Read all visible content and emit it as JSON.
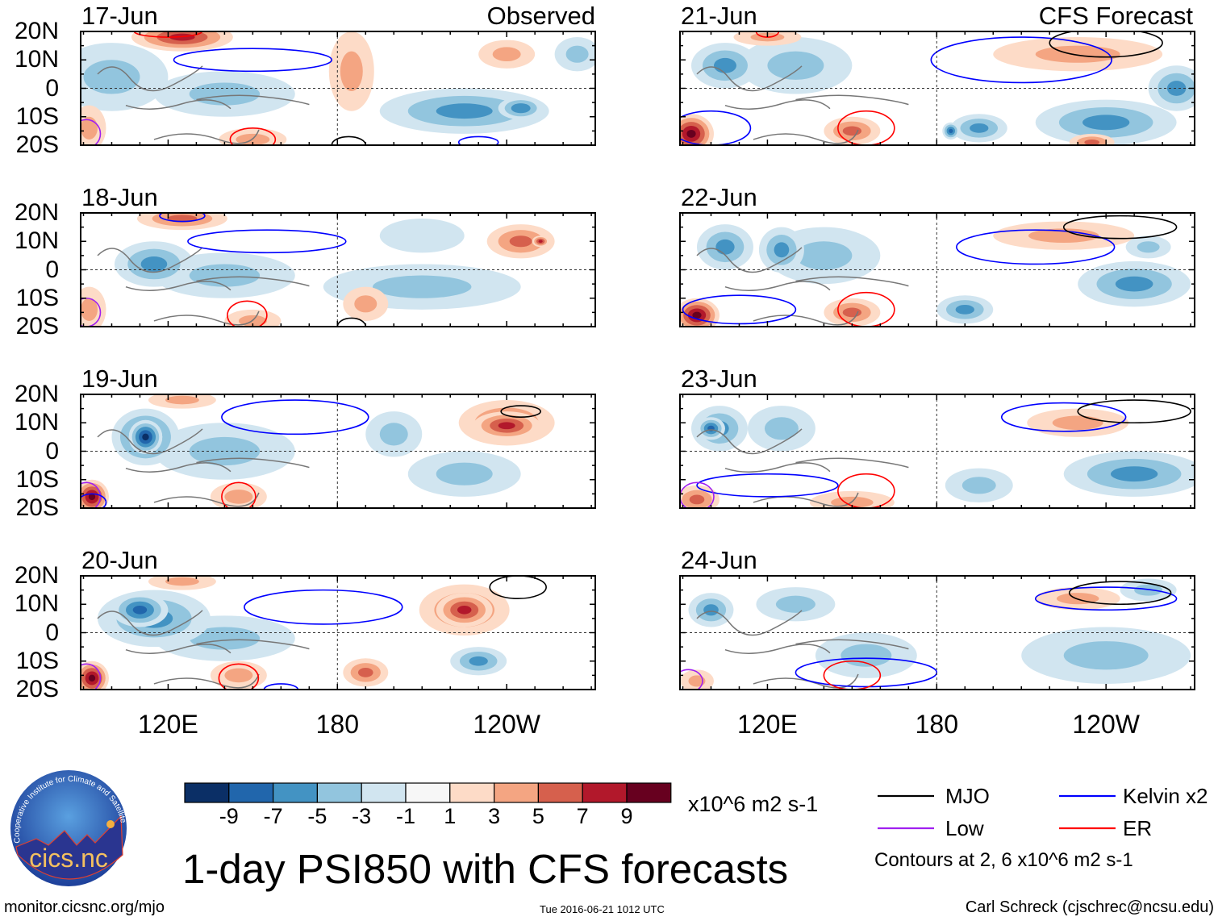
{
  "header": {
    "left_label": "Observed",
    "right_label": "CFS Forecast"
  },
  "lat_labels": [
    "20N",
    "10N",
    "0",
    "10S",
    "20S"
  ],
  "lon_labels": [
    "120E",
    "180",
    "120W"
  ],
  "colorbar": {
    "colors": [
      "#0b2f66",
      "#2166ac",
      "#4393c3",
      "#92c5de",
      "#d1e5f0",
      "#f7f7f7",
      "#fddbc7",
      "#f4a582",
      "#d6604d",
      "#b2182b",
      "#67001f"
    ],
    "labels": [
      "-9",
      "-7",
      "-5",
      "-3",
      "-1",
      "1",
      "3",
      "5",
      "7",
      "9"
    ],
    "units": "x10^6 m2 s-1"
  },
  "legend": {
    "items": [
      {
        "label": "MJO",
        "color": "#000000"
      },
      {
        "label": "Kelvin x2",
        "color": "#0000ff"
      },
      {
        "label": "Low",
        "color": "#a020f0"
      },
      {
        "label": "ER",
        "color": "#ff0000"
      }
    ],
    "note": "Contours at 2, 6 x10^6 m2 s-1"
  },
  "title": "1-day PSI850 with CFS forecasts",
  "timestamp": "Tue 2016-06-21 1012 UTC",
  "url": "monitor.cicsnc.org/mjo",
  "credit": "Carl Schreck (cjschrec@ncsu.edu)",
  "logo": {
    "text": "cics.nc",
    "ring_text": "Cooperative Institute for Climate and Satellites"
  },
  "map": {
    "lon_range": [
      89,
      271.4
    ],
    "lat_range": [
      -20,
      20
    ]
  },
  "panels": [
    {
      "date": "17-Jun",
      "anomalies": [
        [
          125,
          18,
          7,
          18,
          5
        ],
        [
          100,
          4,
          -3,
          20,
          12
        ],
        [
          140,
          -2,
          -3,
          25,
          8
        ],
        [
          225,
          -8,
          -5,
          30,
          8
        ],
        [
          245,
          -7,
          -6,
          8,
          4
        ],
        [
          185,
          6,
          3,
          8,
          14
        ],
        [
          240,
          12,
          3,
          10,
          5
        ],
        [
          92,
          -14,
          3,
          6,
          8
        ],
        [
          150,
          -18,
          3,
          12,
          4
        ],
        [
          265,
          12,
          -3,
          8,
          6
        ]
      ],
      "contours": [
        [
          "kelvin",
          150,
          10,
          28,
          4
        ],
        [
          "er",
          150,
          -18,
          8,
          4
        ],
        [
          "mjo",
          184,
          -20,
          6,
          3
        ],
        [
          "low",
          91,
          -16,
          5,
          5
        ],
        [
          "kelvin",
          230,
          -19,
          7,
          2
        ],
        [
          "er",
          120,
          20,
          12,
          2
        ]
      ]
    },
    {
      "date": "18-Jun",
      "anomalies": [
        [
          125,
          18,
          5,
          16,
          4
        ],
        [
          115,
          2,
          -5,
          14,
          8
        ],
        [
          140,
          -2,
          -3,
          25,
          8
        ],
        [
          210,
          -6,
          -3,
          35,
          8
        ],
        [
          245,
          10,
          5,
          12,
          6
        ],
        [
          252,
          10,
          7,
          3,
          2
        ],
        [
          190,
          -12,
          3,
          8,
          6
        ],
        [
          92,
          -14,
          3,
          6,
          8
        ],
        [
          150,
          -18,
          3,
          10,
          4
        ],
        [
          210,
          12,
          -1,
          15,
          6
        ]
      ],
      "contours": [
        [
          "kelvin",
          155,
          10,
          28,
          4
        ],
        [
          "er",
          148,
          -16,
          7,
          5
        ],
        [
          "mjo",
          185,
          -20,
          5,
          3
        ],
        [
          "low",
          91,
          -15,
          5,
          5
        ],
        [
          "kelvin",
          125,
          19,
          8,
          2
        ]
      ]
    },
    {
      "date": "19-Jun",
      "anomalies": [
        [
          112,
          5,
          -9,
          6,
          6
        ],
        [
          112,
          5,
          -7,
          12,
          10
        ],
        [
          140,
          0,
          -3,
          25,
          10
        ],
        [
          225,
          -8,
          -3,
          20,
          8
        ],
        [
          240,
          9,
          7,
          12,
          5
        ],
        [
          240,
          10,
          5,
          17,
          8
        ],
        [
          93,
          -16,
          9,
          6,
          6
        ],
        [
          145,
          -16,
          3,
          10,
          5
        ],
        [
          200,
          6,
          -3,
          10,
          8
        ],
        [
          125,
          18,
          3,
          12,
          3
        ]
      ],
      "contours": [
        [
          "kelvin",
          165,
          12,
          26,
          6
        ],
        [
          "mjo",
          245,
          14,
          7,
          2
        ],
        [
          "er",
          145,
          -16,
          6,
          5
        ],
        [
          "low",
          91,
          -16,
          5,
          5
        ],
        [
          "kelvin",
          93,
          -18,
          5,
          3
        ]
      ]
    },
    {
      "date": "20-Jun",
      "anomalies": [
        [
          110,
          8,
          -7,
          10,
          6
        ],
        [
          115,
          5,
          -5,
          20,
          10
        ],
        [
          140,
          -2,
          -3,
          25,
          8
        ],
        [
          230,
          -10,
          -5,
          10,
          5
        ],
        [
          225,
          8,
          7,
          10,
          6
        ],
        [
          225,
          8,
          5,
          16,
          9
        ],
        [
          190,
          -14,
          5,
          8,
          5
        ],
        [
          93,
          -16,
          9,
          6,
          6
        ],
        [
          145,
          -15,
          3,
          10,
          5
        ],
        [
          125,
          18,
          3,
          12,
          3
        ]
      ],
      "contours": [
        [
          "kelvin",
          175,
          9,
          28,
          6
        ],
        [
          "mjo",
          244,
          16,
          10,
          4
        ],
        [
          "er",
          145,
          -16,
          7,
          5
        ],
        [
          "low",
          91,
          -16,
          5,
          5
        ],
        [
          "kelvin",
          160,
          -20,
          6,
          2
        ]
      ]
    },
    {
      "date": "21-Jun",
      "anomalies": [
        [
          105,
          8,
          -5,
          12,
          8
        ],
        [
          130,
          8,
          -3,
          20,
          10
        ],
        [
          240,
          -12,
          -5,
          25,
          8
        ],
        [
          265,
          0,
          -5,
          10,
          8
        ],
        [
          195,
          -14,
          -5,
          10,
          5
        ],
        [
          185,
          -15,
          -7,
          3,
          3
        ],
        [
          93,
          -16,
          9,
          8,
          7
        ],
        [
          150,
          -15,
          5,
          10,
          5
        ],
        [
          230,
          12,
          3,
          30,
          6
        ],
        [
          235,
          -19,
          5,
          8,
          3
        ],
        [
          120,
          18,
          3,
          12,
          3
        ]
      ],
      "contours": [
        [
          "kelvin",
          210,
          10,
          32,
          8
        ],
        [
          "mjo",
          240,
          16,
          20,
          5
        ],
        [
          "er",
          155,
          -14,
          10,
          6
        ],
        [
          "kelvin",
          100,
          -14,
          14,
          6
        ],
        [
          "er",
          120,
          20,
          4,
          2
        ]
      ]
    },
    {
      "date": "22-Jun",
      "anomalies": [
        [
          105,
          8,
          -5,
          10,
          8
        ],
        [
          125,
          7,
          -5,
          8,
          8
        ],
        [
          140,
          5,
          -3,
          20,
          10
        ],
        [
          250,
          -5,
          -5,
          20,
          8
        ],
        [
          190,
          -14,
          -5,
          10,
          5
        ],
        [
          95,
          -16,
          9,
          8,
          6
        ],
        [
          150,
          -15,
          5,
          10,
          5
        ],
        [
          225,
          12,
          3,
          25,
          5
        ],
        [
          255,
          8,
          -3,
          8,
          4
        ]
      ],
      "contours": [
        [
          "kelvin",
          215,
          8,
          28,
          6
        ],
        [
          "mjo",
          245,
          15,
          20,
          4
        ],
        [
          "er",
          155,
          -14,
          10,
          6
        ],
        [
          "kelvin",
          110,
          -14,
          20,
          5
        ]
      ]
    },
    {
      "date": "23-Jun",
      "anomalies": [
        [
          100,
          8,
          -7,
          5,
          4
        ],
        [
          103,
          8,
          -5,
          10,
          8
        ],
        [
          125,
          8,
          -3,
          12,
          8
        ],
        [
          250,
          -8,
          -5,
          25,
          8
        ],
        [
          195,
          -12,
          -3,
          12,
          6
        ],
        [
          150,
          -18,
          3,
          15,
          4
        ],
        [
          230,
          10,
          3,
          18,
          5
        ],
        [
          95,
          -17,
          5,
          8,
          5
        ]
      ],
      "contours": [
        [
          "kelvin",
          225,
          12,
          22,
          5
        ],
        [
          "mjo",
          250,
          14,
          20,
          4
        ],
        [
          "er",
          155,
          -14,
          10,
          6
        ],
        [
          "kelvin",
          120,
          -12,
          25,
          4
        ],
        [
          "low",
          95,
          -16,
          6,
          5
        ]
      ]
    },
    {
      "date": "24-Jun",
      "anomalies": [
        [
          100,
          8,
          -5,
          8,
          6
        ],
        [
          130,
          10,
          -3,
          14,
          6
        ],
        [
          240,
          -8,
          -3,
          30,
          10
        ],
        [
          155,
          -8,
          -3,
          18,
          8
        ],
        [
          230,
          12,
          3,
          15,
          4
        ],
        [
          95,
          -17,
          3,
          6,
          4
        ],
        [
          255,
          15,
          -3,
          10,
          4
        ]
      ],
      "contours": [
        [
          "kelvin",
          240,
          12,
          25,
          4
        ],
        [
          "mjo",
          245,
          14,
          18,
          4
        ],
        [
          "kelvin",
          155,
          -14,
          25,
          5
        ],
        [
          "er",
          150,
          -15,
          10,
          5
        ],
        [
          "low",
          92,
          -17,
          5,
          4
        ]
      ]
    }
  ]
}
